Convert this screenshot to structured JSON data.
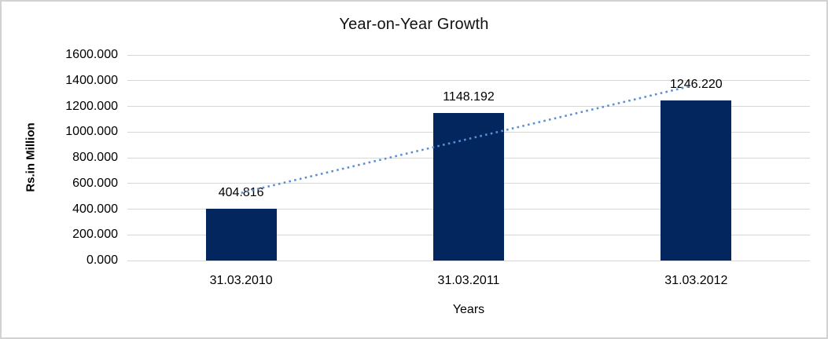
{
  "window": {
    "background_color": "#ffffff",
    "frame_border_color": "#d2d2d2"
  },
  "chart_data": {
    "type": "bar",
    "title": "Year-on-Year Growth",
    "xlabel": "Years",
    "ylabel": "Rs.in Million",
    "categories": [
      "31.03.2010",
      "31.03.2011",
      "31.03.2012"
    ],
    "values": [
      404.816,
      1148.192,
      1246.22
    ],
    "data_labels": [
      "404.816",
      "1148.192",
      "1246.220"
    ],
    "ylim": [
      0,
      1600
    ],
    "ytick_step": 200,
    "ytick_labels": [
      "0.000",
      "200.000",
      "400.000",
      "600.000",
      "800.000",
      "1000.000",
      "1200.000",
      "1400.000",
      "1600.000"
    ],
    "grid": "horizontal",
    "legend": "none",
    "bar_color": "#04265e",
    "gridline_color": "#d7d7d7",
    "trendline": {
      "type": "linear",
      "style": "dotted",
      "color": "#5b8fd4",
      "fitted_values": [
        512.374,
        933.076,
        1353.778
      ]
    }
  }
}
